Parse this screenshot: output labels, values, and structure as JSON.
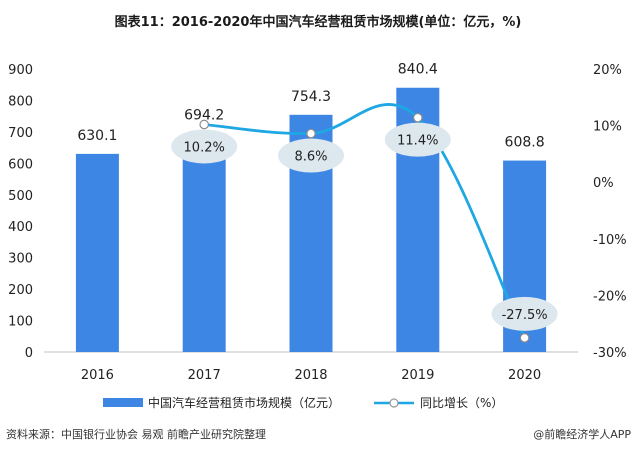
{
  "chart_data": {
    "type": "bar+line",
    "title": "图表11：2016-2020年中国汽车经营租赁市场规模(单位：亿元，%)",
    "categories": [
      "2016",
      "2017",
      "2018",
      "2019",
      "2020"
    ],
    "bar_series": {
      "name": "中国汽车经营租赁市场规模（亿元）",
      "values": [
        630.1,
        694.2,
        754.3,
        840.4,
        608.8
      ],
      "color": "#3e86e4"
    },
    "line_series": {
      "name": "同比增长（%）",
      "values": [
        null,
        10.2,
        8.6,
        11.4,
        -27.5
      ],
      "value_labels": [
        "",
        "10.2%",
        "8.6%",
        "11.4%",
        "-27.5%"
      ],
      "color": "#1fa7e4",
      "label_bubble_color": "#dce8ee"
    },
    "y_left": {
      "ticks": [
        0,
        100,
        200,
        300,
        400,
        500,
        600,
        700,
        800,
        900
      ],
      "ylim": [
        0,
        900
      ]
    },
    "y_right": {
      "ticks": [
        "20%",
        "10%",
        "0%",
        "-10%",
        "-20%",
        "-30%"
      ],
      "ylim": [
        -30,
        20
      ]
    },
    "grid": false,
    "legend_position": "bottom"
  },
  "footer": {
    "source": "资料来源：中国银行业协会 易观 前瞻产业研究院整理",
    "brand": "@前瞻经济学人APP"
  }
}
